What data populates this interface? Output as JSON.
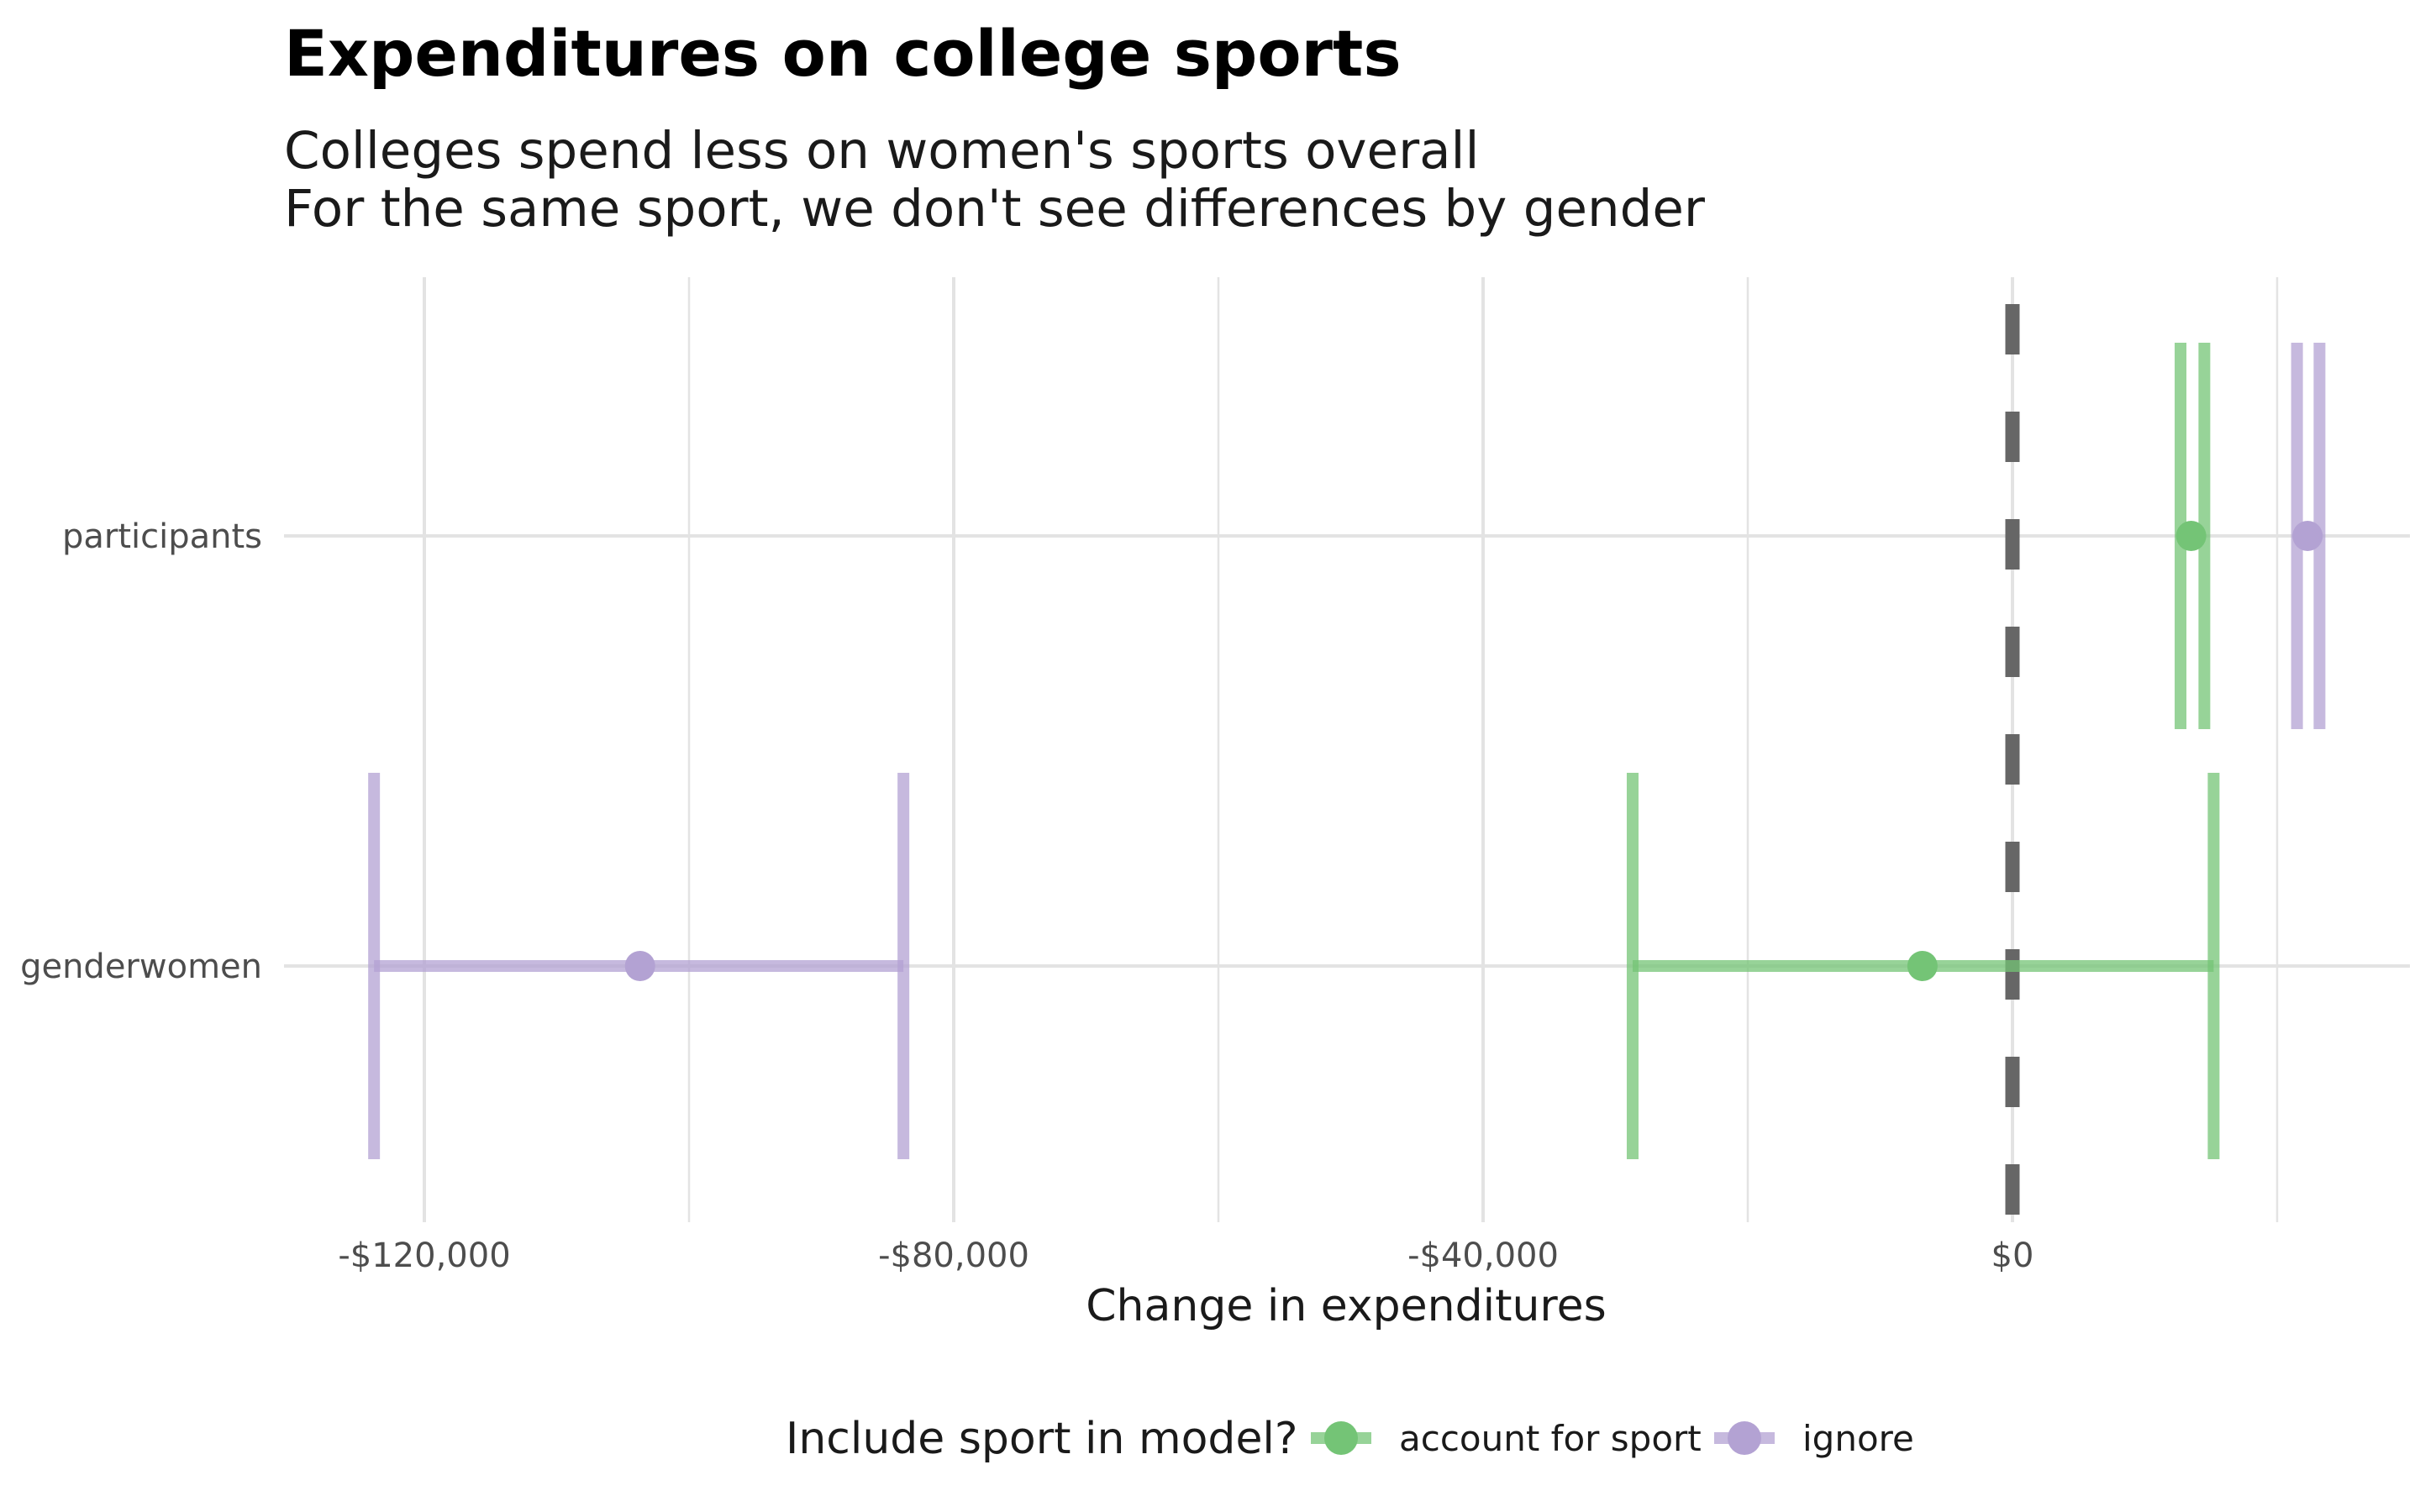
{
  "chart_data": {
    "type": "errorbar",
    "title": "Expenditures on college sports",
    "subtitle_lines": [
      "Colleges spend less on women's sports overall",
      "For the same sport, we don't see differences by gender"
    ],
    "xlabel": "Change in expenditures",
    "ylabel": "",
    "xlim": [
      -147000,
      30000
    ],
    "x_ticks": [
      -120000,
      -80000,
      -40000,
      0
    ],
    "x_tick_labels": [
      "-$120,000",
      "-$80,000",
      "-$40,000",
      "$0"
    ],
    "categories": [
      "participants",
      "genderwomen"
    ],
    "reference_line": {
      "x": 0,
      "style": "dashed",
      "color": "#666666"
    },
    "series": [
      {
        "name": "account for sport",
        "color": "#74c476",
        "estimates": [
          13500,
          -6800
        ],
        "lower": [
          12700,
          -28700
        ],
        "upper": [
          14500,
          15200
        ]
      },
      {
        "name": "ignore",
        "color": "#b3a2d3",
        "estimates": [
          22300,
          -103700
        ],
        "lower": [
          21500,
          -123800
        ],
        "upper": [
          23200,
          -83800
        ]
      }
    ],
    "grid": true,
    "legend": {
      "title": "Include sport in model?",
      "position": "bottom"
    }
  }
}
